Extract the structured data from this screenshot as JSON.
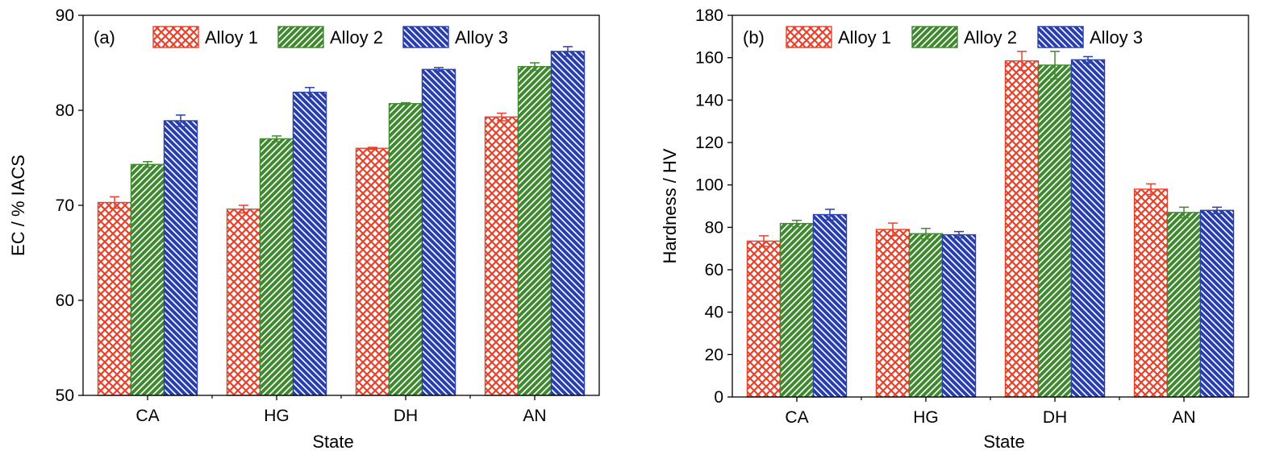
{
  "chart_data": [
    {
      "type": "bar",
      "panel_label": "(a)",
      "categories": [
        "CA",
        "HG",
        "DH",
        "AN"
      ],
      "series": [
        {
          "name": "Alloy 1",
          "values": [
            70.3,
            69.6,
            76.0,
            79.3
          ],
          "errors": [
            0.6,
            0.4,
            0.1,
            0.4
          ]
        },
        {
          "name": "Alloy 2",
          "values": [
            74.3,
            77.0,
            80.7,
            84.6
          ],
          "errors": [
            0.3,
            0.3,
            0.1,
            0.4
          ]
        },
        {
          "name": "Alloy 3",
          "values": [
            78.9,
            81.9,
            84.3,
            86.2
          ],
          "errors": [
            0.6,
            0.5,
            0.2,
            0.5
          ]
        }
      ],
      "xlabel": "State",
      "ylabel": "EC / % IACS",
      "ylim": [
        50,
        90
      ],
      "yticks": [
        50,
        60,
        70,
        80,
        90
      ],
      "legend_position": "top",
      "grid": false
    },
    {
      "type": "bar",
      "panel_label": "(b)",
      "categories": [
        "CA",
        "HG",
        "DH",
        "AN"
      ],
      "series": [
        {
          "name": "Alloy 1",
          "values": [
            73.5,
            79.0,
            158.5,
            98.0
          ],
          "errors": [
            2.5,
            3.0,
            4.5,
            2.5
          ]
        },
        {
          "name": "Alloy 2",
          "values": [
            81.8,
            77.0,
            156.5,
            87.0
          ],
          "errors": [
            1.5,
            2.5,
            6.5,
            2.5
          ]
        },
        {
          "name": "Alloy 3",
          "values": [
            86.0,
            76.5,
            159.0,
            88.0
          ],
          "errors": [
            2.5,
            1.5,
            1.5,
            1.5
          ]
        }
      ],
      "xlabel": "State",
      "ylabel": "Hardness / HV",
      "ylim": [
        0,
        180
      ],
      "yticks": [
        0,
        20,
        40,
        60,
        80,
        100,
        120,
        140,
        160,
        180
      ],
      "legend_position": "top",
      "grid": false
    }
  ],
  "series_style": [
    {
      "color": "#e8412a",
      "pattern": "crosshatch"
    },
    {
      "color": "#3f8a2f",
      "pattern": "diagonal-up"
    },
    {
      "color": "#2a3fa8",
      "pattern": "diagonal-down"
    }
  ]
}
